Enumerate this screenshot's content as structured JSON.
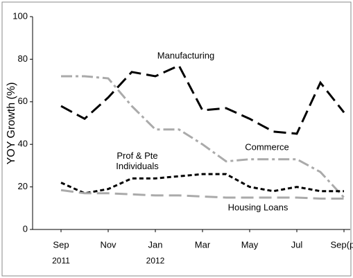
{
  "chart_data": {
    "type": "line",
    "y_label": "YOY Growth (%)",
    "categories": [
      "Sep",
      null,
      "Nov",
      null,
      "Jan",
      null,
      "Mar",
      null,
      "May",
      null,
      "Jul",
      null,
      "Sep(p)"
    ],
    "category_years": [
      "2011",
      null,
      null,
      null,
      "2012",
      null,
      null,
      null,
      null,
      null,
      null,
      null,
      null
    ],
    "ylim": [
      0,
      100
    ],
    "yticks": [
      0,
      20,
      40,
      60,
      80,
      100
    ],
    "legend": "inline",
    "series": [
      {
        "name": "Manufacturing",
        "color": "#000000",
        "dash": "long-dash",
        "values": [
          58,
          52,
          62,
          74,
          72,
          77,
          56,
          57,
          52,
          46,
          45,
          69,
          55
        ]
      },
      {
        "name": "Commerce",
        "color": "#aaaaaa",
        "dash": "dash-dot",
        "values": [
          72,
          72,
          71,
          58,
          47,
          47,
          40,
          32,
          33,
          33,
          33,
          27,
          15
        ]
      },
      {
        "name": "Prof & Pte Individuals",
        "color": "#000000",
        "dash": "short-dash",
        "values": [
          22,
          17,
          19,
          24,
          24,
          25,
          26,
          26,
          20,
          18,
          20,
          18,
          18
        ]
      },
      {
        "name": "Housing Loans",
        "color": "#aaaaaa",
        "dash": "long-dash",
        "values": [
          18.5,
          17,
          17,
          16.5,
          16,
          16,
          15.5,
          15,
          15,
          15,
          15,
          14.5,
          14.5
        ]
      }
    ]
  }
}
